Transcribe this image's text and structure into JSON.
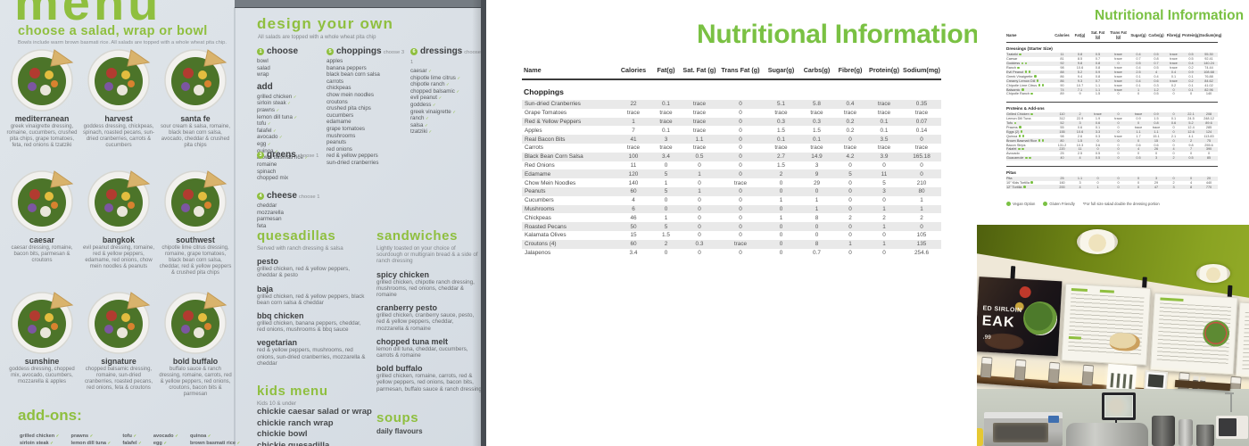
{
  "colors": {
    "menu_green": "#8fbf3f",
    "table_green": "#7ac143",
    "menu_page_bg": "#dde3e9",
    "zebra_gray": "#e9e9e9",
    "ceiling_green": "#7d941f"
  },
  "menu_page": {
    "title": "menu",
    "mark_glyph": "✓",
    "salads": {
      "heading": "choose a salad, wrap or bowl",
      "subheading": "Bowls include warm brown basmati rice. All salads are topped with a whole wheat pita chip.",
      "items": [
        {
          "name": "mediterranean",
          "desc": "greek vinaigrette dressing, romaine, cucumbers, crushed pita chips, grape tomatoes, feta, red onions & tzatziki"
        },
        {
          "name": "harvest",
          "desc": "goddess dressing, chickpeas, spinach, roasted pecans, sun-dried cranberries, carrots & cucumbers"
        },
        {
          "name": "santa fe",
          "desc": "sour cream & salsa, romaine, black bean corn salsa, avocado, cheddar & crushed pita chips"
        },
        {
          "name": "caesar",
          "desc": "caesar dressing, romaine, bacon bits, parmesan & croutons"
        },
        {
          "name": "bangkok",
          "desc": "evil peanut dressing, romaine, red & yellow peppers, edamame, red onions, chow mein noodles & peanuts"
        },
        {
          "name": "southwest",
          "desc": "chipotle lime citrus dressing, romaine, grape tomatoes, black bean corn salsa, cheddar, red & yellow peppers & crushed pita chips"
        },
        {
          "name": "sunshine",
          "desc": "goddess dressing, chopped mix, avocado, cucumbers, mozzarella & apples"
        },
        {
          "name": "signature",
          "desc": "chopped balsamic dressing, romaine, sun-dried cranberries, roasted pecans, red onions, feta & croutons"
        },
        {
          "name": "bold buffalo",
          "desc": "buffalo sauce & ranch dressing, romaine, carrots, red & yellow peppers, red onions, croutons, bacon bits & parmesan"
        }
      ]
    },
    "addons": {
      "heading": "add-ons:",
      "columns": [
        [
          "grilled chicken",
          "sirloin steak"
        ],
        [
          "prawns",
          "lemon dill tuna"
        ],
        [
          "tofu",
          "falafel"
        ],
        [
          "avocado",
          "egg"
        ],
        [
          "quinoa",
          "brown basmati rice"
        ]
      ]
    },
    "design": {
      "heading": "design your own",
      "subheading": "All salads are topped with a whole wheat pita chip",
      "steps": {
        "choose": {
          "num": "1",
          "label": "choose",
          "items": [
            "bowl",
            "salad",
            "wrap"
          ]
        },
        "add": {
          "label": "add",
          "items": [
            "grilled chicken",
            "sirloin steak",
            "prawns",
            "lemon dill tuna",
            "tofu",
            "falafel",
            "avocado",
            "egg",
            "quinoa",
            "brown basmati rice"
          ]
        },
        "greens": {
          "num": "3",
          "label": "greens",
          "note": "choose 1",
          "items": [
            "romaine",
            "spinach",
            "chopped mix"
          ]
        },
        "cheese": {
          "num": "4",
          "label": "cheese",
          "note": "choose 1",
          "items": [
            "cheddar",
            "mozzarella",
            "parmesan",
            "feta"
          ]
        },
        "choppings": {
          "num": "5",
          "label": "choppings",
          "note": "choose 3",
          "items": [
            "apples",
            "banana peppers",
            "black bean corn salsa",
            "carrots",
            "chickpeas",
            "chow mein noodles",
            "croutons",
            "crushed pita chips",
            "cucumbers",
            "edamame",
            "grape tomatoes",
            "mushrooms",
            "peanuts",
            "red onions",
            "red & yellow peppers",
            "sun-dried cranberries"
          ]
        },
        "dressings": {
          "num": "6",
          "label": "dressings",
          "note": "choose 1",
          "items": [
            "caesar",
            "chipotle lime citrus",
            "chipotle ranch",
            "chopped balsamic",
            "evil peanut",
            "goddess",
            "greek vinaigrette",
            "ranch",
            "salsa",
            "tzatziki"
          ]
        }
      }
    },
    "quesadillas": {
      "heading": "quesadillas",
      "subheading": "Served with ranch dressing & salsa",
      "items": [
        {
          "name": "pesto",
          "desc": "grilled chicken, red & yellow peppers, cheddar & pesto"
        },
        {
          "name": "baja",
          "desc": "grilled chicken, red & yellow peppers, black bean corn salsa & cheddar"
        },
        {
          "name": "bbq chicken",
          "desc": "grilled chicken, banana peppers, cheddar, red onions, mushrooms & bbq sauce"
        },
        {
          "name": "vegetarian",
          "desc": "red & yellow peppers, mushrooms, red onions, sun-dried cranberries, mozzarella & cheddar"
        }
      ]
    },
    "sandwiches": {
      "heading": "sandwiches",
      "subheading": "Lightly toasted on your choice of sourdough or multigrain bread & a side of ranch dressing",
      "items": [
        {
          "name": "spicy chicken",
          "desc": "grilled chicken, chipotle ranch dressing, mushrooms, red onions, cheddar & romaine"
        },
        {
          "name": "cranberry pesto",
          "desc": "grilled chicken, cranberry sauce, pesto, red & yellow peppers, cheddar, mozzarella & romaine"
        },
        {
          "name": "chopped tuna melt",
          "desc": "lemon dill tuna, cheddar, cucumbers, carrots & romaine"
        },
        {
          "name": "bold buffalo",
          "desc": "grilled chicken, romaine, carrots, red & yellow peppers, red onions, bacon bits, parmesan, buffalo sauce & ranch dressing"
        }
      ]
    },
    "kids_menu": {
      "heading": "kids menu",
      "subheading": "Kids 10 & under",
      "items": [
        "chickie caesar salad or wrap",
        "chickie ranch wrap",
        "chickie bowl",
        "chickie quesadilla"
      ]
    },
    "soups": {
      "heading": "soups",
      "subheading": "daily flavours"
    }
  },
  "nutrition_main": {
    "title": "Nutritional Information",
    "name_col": "Name",
    "columns": [
      "Calories",
      "Fat(g)",
      "Sat. Fat (g)",
      "Trans Fat (g)",
      "Sugar(g)",
      "Carbs(g)",
      "Fibre(g)",
      "Protein(g)",
      "Sodium(mg)"
    ],
    "section": "Choppings",
    "rows": [
      [
        "Sun-dried Cranberries",
        "22",
        "0.1",
        "trace",
        "0",
        "5.1",
        "5.8",
        "0.4",
        "trace",
        "0.35"
      ],
      [
        "Grape Tomatoes",
        "trace",
        "trace",
        "trace",
        "0",
        "trace",
        "trace",
        "trace",
        "trace",
        "trace"
      ],
      [
        "Red & Yellow Peppers",
        "1",
        "trace",
        "trace",
        "0",
        "0.3",
        "0.3",
        "0.2",
        "0.1",
        "0.07"
      ],
      [
        "Apples",
        "7",
        "0.1",
        "trace",
        "0",
        "1.5",
        "1.5",
        "0.2",
        "0.1",
        "0.14"
      ],
      [
        "Real Bacon Bits",
        "41",
        "3",
        "1.1",
        "0",
        "0.1",
        "0.1",
        "0",
        "3.5",
        "0"
      ],
      [
        "Carrots",
        "trace",
        "trace",
        "trace",
        "0",
        "trace",
        "trace",
        "trace",
        "trace",
        "trace"
      ],
      [
        "Black Bean Corn Salsa",
        "100",
        "3.4",
        "0.5",
        "0",
        "2.7",
        "14.9",
        "4.2",
        "3.9",
        "165.18"
      ],
      [
        "Red Onions",
        "11",
        "0",
        "0",
        "0",
        "1.5",
        "3",
        "0",
        "0",
        "0"
      ],
      [
        "Edamame",
        "120",
        "5",
        "1",
        "0",
        "2",
        "9",
        "5",
        "11",
        "0"
      ],
      [
        "Chow Mein Noodles",
        "140",
        "1",
        "0",
        "trace",
        "0",
        "29",
        "0",
        "5",
        "210"
      ],
      [
        "Peanuts",
        "60",
        "5",
        "1",
        "0",
        "0",
        "0",
        "0",
        "3",
        "80"
      ],
      [
        "Cucumbers",
        "4",
        "0",
        "0",
        "0",
        "1",
        "1",
        "0",
        "0",
        "1"
      ],
      [
        "Mushrooms",
        "6",
        "0",
        "0",
        "0",
        "0",
        "1",
        "0",
        "1",
        "1"
      ],
      [
        "Chickpeas",
        "46",
        "1",
        "0",
        "0",
        "1",
        "8",
        "2",
        "2",
        "2"
      ],
      [
        "Roasted Pecans",
        "50",
        "5",
        "0",
        "0",
        "0",
        "0",
        "0",
        "1",
        "0"
      ],
      [
        "Kalamata Olives",
        "15",
        "1.5",
        "0",
        "0",
        "0",
        "0",
        "0",
        "0",
        "105"
      ],
      [
        "Croutons (4)",
        "60",
        "2",
        "0.3",
        "trace",
        "0",
        "8",
        "1",
        "1",
        "135"
      ],
      [
        "Jalapenos",
        "3.4",
        "0",
        "0",
        "0",
        "0",
        "0.7",
        "0",
        "0",
        "254.6"
      ]
    ]
  },
  "nutrition_small": {
    "title": "Nutritional Information",
    "name_col": "Name",
    "columns": [
      "Calories",
      "Fat(g)",
      "Sat. Fat (g)",
      "Trans Fat (g)",
      "Sugar(g)",
      "Carbs(g)",
      "Fibre(g)",
      "Protein(g)",
      "Sodium(mg)"
    ],
    "sections": [
      {
        "name": "Dressings (Starter Size)",
        "rows": [
          [
            "Tzatziki",
            "11",
            "0.8",
            "0.5",
            "trace",
            "0.4",
            "0.5",
            "trace",
            "0.5",
            "55.30",
            "g"
          ],
          [
            "Caesar",
            "81",
            "8.5",
            "0.7",
            "trace",
            "0.7",
            "0.8",
            "trace",
            "0.5",
            "92.41",
            ""
          ],
          [
            "Goddess",
            "92",
            "9.8",
            "0.8",
            "0",
            "0.5",
            "0.7",
            "trace",
            "0.4",
            "140.24",
            "vg"
          ],
          [
            "Ranch",
            "98",
            "10.6",
            "0.8",
            "trace",
            "0.4",
            "0.5",
            "trace",
            "0.2",
            "74.44",
            "g"
          ],
          [
            "Evil Peanut",
            "88",
            "5.2",
            "0.9",
            "trace",
            "2.5",
            "4",
            "0.4",
            "0.9",
            "108.68",
            "vg"
          ],
          [
            "Greek Vinaigrette",
            "86",
            "9.4",
            "0.8",
            "trace",
            "0.1",
            "0.4",
            "0.1",
            "0.1",
            "76.88",
            "g"
          ],
          [
            "Creamy Lemon Dill",
            "86",
            "9.3",
            "0.7",
            "trace",
            "0.4",
            "0.6",
            "trace",
            "0.2",
            "84.62",
            "g"
          ],
          [
            "Chipotle Lime Citrus",
            "90",
            "10.7",
            "1.1",
            "trace",
            "0.1",
            "0.3",
            "0.2",
            "0.1",
            "41.02",
            "vg"
          ],
          [
            "Balsamic",
            "74",
            "7.1",
            "1.1",
            "trace",
            "1",
            "1.2",
            "0",
            "0.1",
            "82.96",
            "v"
          ],
          [
            "Chipotle Ranch",
            "89",
            "9",
            "1.5",
            "0",
            "0",
            "0.5",
            "0",
            "0",
            "140",
            "g"
          ]
        ]
      },
      {
        "name": "Proteins & Add-ons",
        "rows": [
          [
            "Grilled Chicken",
            "110",
            "2",
            "trace",
            "0",
            "trace",
            "0.9",
            "0",
            "22.1",
            "208",
            "g"
          ],
          [
            "Lemon Dill Tuna",
            "312",
            "22.9",
            "1.9",
            "trace",
            "0.9",
            "1.5",
            "0.1",
            "24.5",
            "248.12",
            ""
          ],
          [
            "Tofu",
            "52",
            "3",
            "0.6",
            "0",
            "0",
            "0.8",
            "0.6",
            "5.2",
            "89.6",
            "g"
          ],
          [
            "Prawns",
            "55",
            "0.6",
            "0.1",
            "0",
            "trace",
            "trace",
            "0",
            "12.4",
            "285",
            "g"
          ],
          [
            "Eggs (2)",
            "155",
            "10.6",
            "3.3",
            "0",
            "1.1",
            "1.1",
            "0",
            "12.6",
            "124",
            "g"
          ],
          [
            "Quinoa",
            "98",
            "2.6",
            "0.3",
            "trace",
            "1.7",
            "15.1",
            "2.1",
            "4.1",
            "113.83",
            "vg"
          ],
          [
            "Brown Basmati Rice",
            "80",
            "1.5",
            "0",
            "0",
            "0",
            "15",
            "0",
            "2",
            "75",
            "vg"
          ],
          [
            "Bacon Strips",
            "131.2",
            "10.3",
            "3.6",
            "0",
            "0.6",
            "0.6",
            "0",
            "9.8",
            "255.6",
            ""
          ],
          [
            "Falafel",
            "220",
            "11",
            "0",
            "0",
            "4",
            "26",
            "4",
            "7",
            "390",
            "vg"
          ],
          [
            "Avocado",
            "25",
            "2.5",
            "0.5",
            "0",
            "0",
            "0",
            "0",
            "0",
            "0",
            ""
          ],
          [
            "Guacamole",
            "40",
            "4",
            "0.5",
            "0",
            "0.5",
            "3",
            "2",
            "0.5",
            "85",
            "vg"
          ]
        ]
      },
      {
        "name": "Pitas",
        "rows": [
          [
            "Pita",
            "25",
            "1.1",
            "0",
            "0",
            "0",
            "3",
            "0",
            "0",
            "20",
            ""
          ],
          [
            "10\" Kids Tortilla",
            "160",
            "3",
            "0",
            "0",
            "0",
            "29",
            "2",
            "4",
            "440",
            "v"
          ],
          [
            "12\" Tortilla",
            "200",
            "4",
            "1",
            "0",
            "0",
            "47",
            "3",
            "8",
            "770",
            "v"
          ]
        ]
      }
    ],
    "legend": {
      "vegan": "Vegan Option",
      "gluten": "Gluten Friendly",
      "note": "*For full size salad double the dressing portion"
    }
  },
  "photo": {
    "steak_board": {
      "line1": "ED SIRLOIN",
      "line2": "EAK",
      "price": ".99"
    }
  }
}
